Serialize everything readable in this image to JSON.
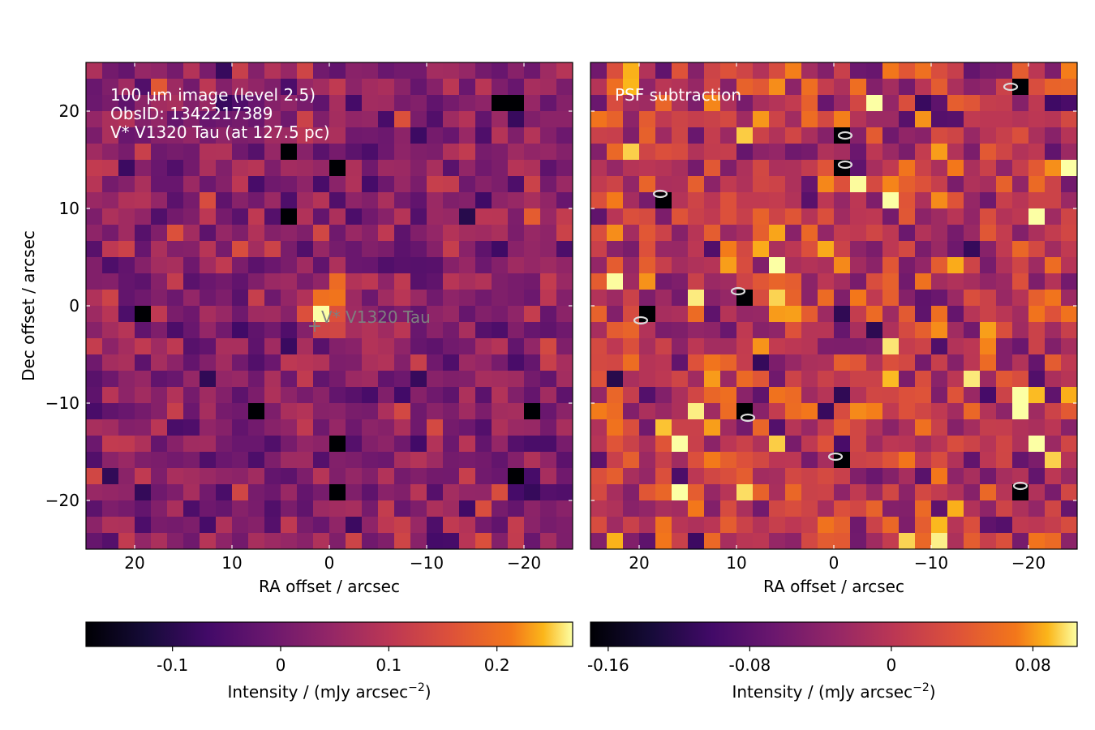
{
  "chart_data": [
    {
      "type": "heatmap",
      "panel": "left",
      "annotation_lines": [
        "100 µm image (level 2.5)",
        "ObsID: 1342217389",
        "V* V1320 Tau (at 127.5 pc)"
      ],
      "marker_label": "V* V1320 Tau",
      "marker_position": {
        "ra": 1.5,
        "dec": -2
      },
      "xlabel": "RA offset / arcsec",
      "ylabel": "Dec offset / arcsec",
      "xlim": [
        25,
        -25
      ],
      "ylim": [
        -25,
        25
      ],
      "xticks": [
        20,
        10,
        0,
        -10,
        -20
      ],
      "yticks": [
        20,
        10,
        0,
        -10,
        -20
      ],
      "xtick_labels": [
        "20",
        "10",
        "0",
        "−10",
        "−20"
      ],
      "ytick_labels": [
        "20",
        "10",
        "0",
        "−10",
        "−20"
      ],
      "grid_size": [
        30,
        30
      ],
      "colormap": "inferno",
      "color_range": [
        -0.18,
        0.27
      ],
      "colorbar": {
        "label": "Intensity / (mJy arcsec",
        "label_superscript": "−2",
        "label_suffix": ")",
        "ticks": [
          -0.1,
          0,
          0.1,
          0.2
        ],
        "tick_labels": [
          "-0.1",
          "0",
          "0.1",
          "0.2"
        ]
      },
      "features": {
        "source_peak": {
          "ra": 0,
          "dec": 0,
          "value": 0.27
        },
        "dark_pixels": [
          [
            4.5,
            16.5
          ],
          [
            -1.5,
            14.5
          ],
          [
            4.5,
            9.5
          ],
          [
            -17.5,
            21.5
          ],
          [
            -19.5,
            20.5
          ],
          [
            -0.5,
            -14.5
          ],
          [
            -0.5,
            -19.5
          ],
          [
            -19.5,
            -17.5
          ],
          [
            7.5,
            -11.5
          ],
          [
            19.5,
            -1.5
          ],
          [
            -20.5,
            -11.5
          ]
        ]
      }
    },
    {
      "type": "heatmap",
      "panel": "right",
      "annotation_lines": [
        "PSF subtraction"
      ],
      "xlabel": "RA offset / arcsec",
      "xlim": [
        25,
        -25
      ],
      "ylim": [
        -25,
        25
      ],
      "xticks": [
        20,
        10,
        0,
        -10,
        -20
      ],
      "yticks": [
        20,
        10,
        0,
        -10,
        -20
      ],
      "xtick_labels": [
        "20",
        "10",
        "0",
        "−10",
        "−20"
      ],
      "grid_size": [
        30,
        30
      ],
      "colormap": "inferno",
      "color_range": [
        -0.17,
        0.105
      ],
      "contour_color": "#dcdcdc",
      "colorbar": {
        "label": "Intensity / (mJy arcsec",
        "label_superscript": "−2",
        "label_suffix": ")",
        "ticks": [
          -0.16,
          -0.08,
          0,
          0.08
        ],
        "tick_labels": [
          "-0.16",
          "-0.08",
          "0",
          "0.08"
        ]
      },
      "features": {
        "dark_pixels": [
          [
            -1.5,
            17.5
          ],
          [
            -1.5,
            14.5
          ],
          [
            17.5,
            11.5
          ],
          [
            9.5,
            1.5
          ],
          [
            19.5,
            -1.5
          ],
          [
            8.5,
            -11.5
          ],
          [
            -0.5,
            -15.5
          ],
          [
            -19.5,
            -18.5
          ],
          [
            -18.5,
            22.5
          ]
        ],
        "bright_pixels": [
          [
            -4.5,
            20.5
          ],
          [
            -6.5,
            11.5
          ],
          [
            -21.5,
            8.5
          ],
          [
            -20.5,
            8.5
          ],
          [
            -18.5,
            -8.5
          ],
          [
            -19.5,
            -10.5
          ],
          [
            -21.5,
            -14.5
          ],
          [
            16.5,
            -14.5
          ]
        ]
      }
    }
  ]
}
